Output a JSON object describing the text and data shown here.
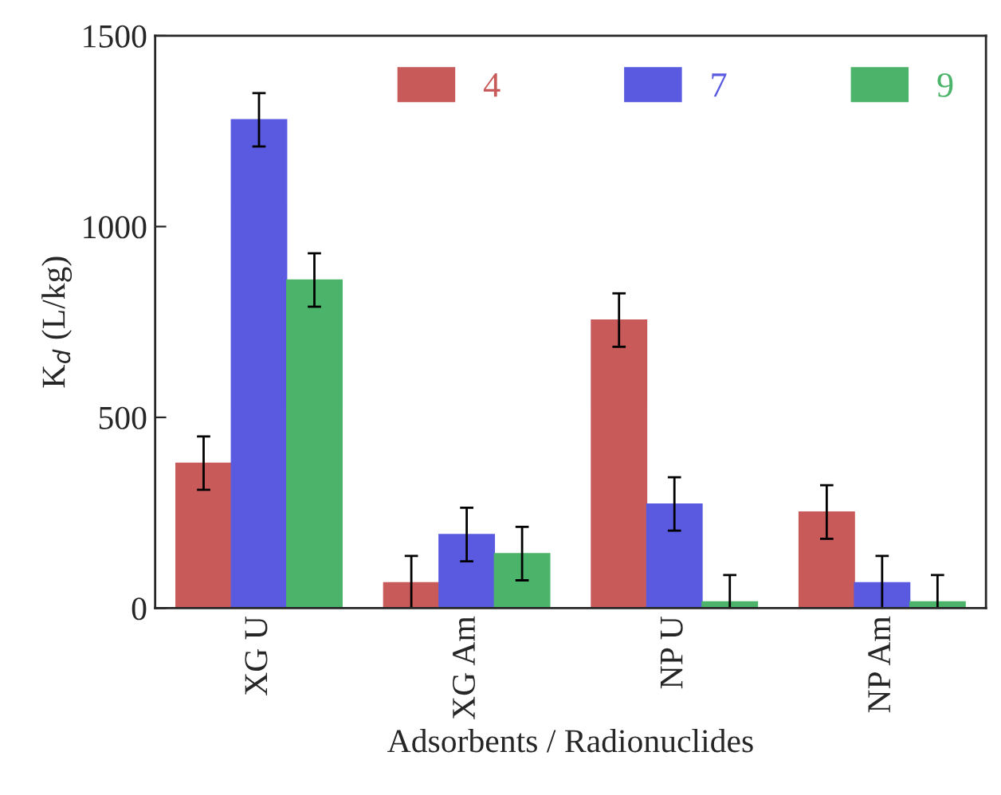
{
  "chart_data": {
    "type": "bar",
    "xlabel": "Adsorbents / Radionuclides",
    "ylabel": "K$_{d}$ (L/kg)",
    "categories": [
      "XG U",
      "XG Am",
      "NP U",
      "NP Am"
    ],
    "series": [
      {
        "name": "4",
        "color": "#c85a5a",
        "values": [
          380,
          67,
          755,
          252
        ],
        "errors": [
          70,
          70,
          70,
          70
        ]
      },
      {
        "name": "7",
        "color": "#5a5ae0",
        "values": [
          1280,
          193,
          273,
          67
        ],
        "errors": [
          70,
          70,
          70,
          70
        ]
      },
      {
        "name": "9",
        "color": "#4cb46a",
        "values": [
          860,
          143,
          17,
          17
        ],
        "errors": [
          70,
          70,
          70,
          70
        ]
      }
    ],
    "ylim": [
      0,
      1500
    ],
    "yticks": [
      0,
      500,
      1000,
      1500
    ],
    "grid": false,
    "legend": "top right"
  }
}
